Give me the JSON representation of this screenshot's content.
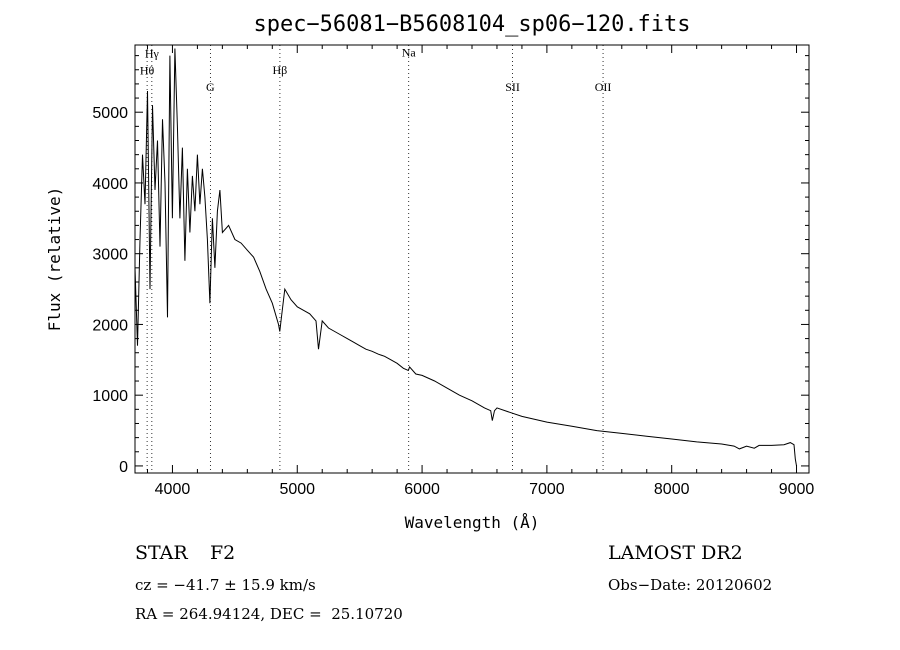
{
  "chart_data": {
    "type": "line",
    "title": "spec−56081−B5608104_sp06−120.fits",
    "xlabel": "Wavelength (Å)",
    "ylabel": "Flux (relative)",
    "xlim": [
      3700,
      9100
    ],
    "ylim": [
      -100,
      5950
    ],
    "xticks": [
      4000,
      5000,
      6000,
      7000,
      8000,
      9000
    ],
    "yticks": [
      0,
      1000,
      2000,
      3000,
      4000,
      5000
    ],
    "grid": false,
    "series": [
      {
        "x": [
          3700,
          3720,
          3740,
          3760,
          3780,
          3800,
          3820,
          3840,
          3860,
          3880,
          3900,
          3920,
          3940,
          3960,
          3980,
          4000,
          4020,
          4040,
          4060,
          4080,
          4100,
          4120,
          4140,
          4160,
          4180,
          4200,
          4220,
          4240,
          4260,
          4280,
          4300,
          4320,
          4340,
          4360,
          4380,
          4400,
          4450,
          4500,
          4550,
          4600,
          4650,
          4700,
          4750,
          4800,
          4850,
          4860,
          4870,
          4900,
          4950,
          5000,
          5050,
          5100,
          5150,
          5170,
          5200,
          5250,
          5300,
          5350,
          5400,
          5450,
          5500,
          5550,
          5600,
          5650,
          5700,
          5750,
          5800,
          5850,
          5890,
          5900,
          5950,
          6000,
          6100,
          6200,
          6300,
          6400,
          6500,
          6550,
          6563,
          6580,
          6600,
          6700,
          6800,
          6900,
          7000,
          7200,
          7400,
          7600,
          7800,
          8000,
          8200,
          8400,
          8500,
          8542,
          8600,
          8662,
          8700,
          8800,
          8900,
          8950,
          8980,
          8990,
          9000
        ],
        "y": [
          2800,
          1700,
          3200,
          4400,
          3700,
          5300,
          2500,
          5100,
          3900,
          4600,
          3100,
          4900,
          4000,
          2100,
          5800,
          3500,
          5900,
          4800,
          3500,
          4500,
          2900,
          4200,
          3300,
          4100,
          3600,
          4400,
          3700,
          4200,
          3800,
          3200,
          2300,
          3500,
          2800,
          3600,
          3900,
          3300,
          3400,
          3200,
          3150,
          3050,
          2950,
          2750,
          2500,
          2300,
          2000,
          1900,
          2050,
          2500,
          2350,
          2250,
          2200,
          2150,
          2050,
          1650,
          2050,
          1950,
          1900,
          1850,
          1800,
          1750,
          1700,
          1650,
          1620,
          1580,
          1550,
          1500,
          1450,
          1380,
          1350,
          1400,
          1300,
          1280,
          1200,
          1100,
          1000,
          920,
          820,
          780,
          640,
          780,
          820,
          760,
          700,
          660,
          620,
          560,
          500,
          460,
          420,
          380,
          340,
          310,
          280,
          240,
          280,
          250,
          290,
          290,
          300,
          330,
          300,
          100,
          0
        ]
      }
    ],
    "lines": [
      {
        "label": "Hγ",
        "x": 3835,
        "label_y": 5770,
        "style": "dotted"
      },
      {
        "label": "Hθ",
        "x": 3797,
        "label_y": 5530,
        "style": "dotted"
      },
      {
        "label": "G",
        "x": 4304,
        "label_y": 5300,
        "style": "dotted"
      },
      {
        "label": "Hβ",
        "x": 4861,
        "label_y": 5540,
        "style": "dotted"
      },
      {
        "label": "Na",
        "x": 5893,
        "label_y": 5790,
        "style": "dotted"
      },
      {
        "label": "SII",
        "x": 6725,
        "label_y": 5300,
        "style": "dotted"
      },
      {
        "label": "OII",
        "x": 7450,
        "label_y": 5300,
        "style": "dotted"
      }
    ]
  },
  "info": {
    "class_label": "STAR",
    "subclass": "F2",
    "survey": "LAMOST DR2",
    "cz": "cz = −41.7 ± 15.9 km/s",
    "obs_date": "Obs−Date: 20120602",
    "coords": "RA = 264.94124, DEC =  25.10720"
  }
}
